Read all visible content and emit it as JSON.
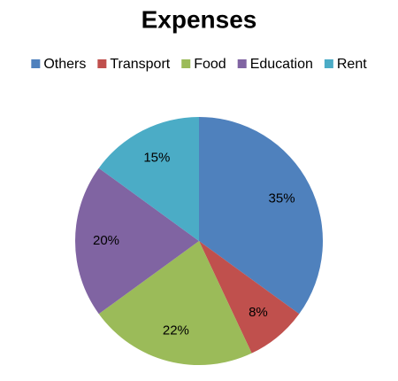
{
  "chart_data": {
    "type": "pie",
    "title": "Expenses",
    "categories": [
      "Others",
      "Transport",
      "Food",
      "Education",
      "Rent"
    ],
    "values": [
      35,
      8,
      22,
      20,
      15
    ],
    "value_labels": [
      "35%",
      "8%",
      "22%",
      "20%",
      "15%"
    ],
    "colors": [
      "#4f81bd",
      "#c0504d",
      "#9bbb59",
      "#8064a2",
      "#4bacc6"
    ],
    "legend": "top"
  }
}
